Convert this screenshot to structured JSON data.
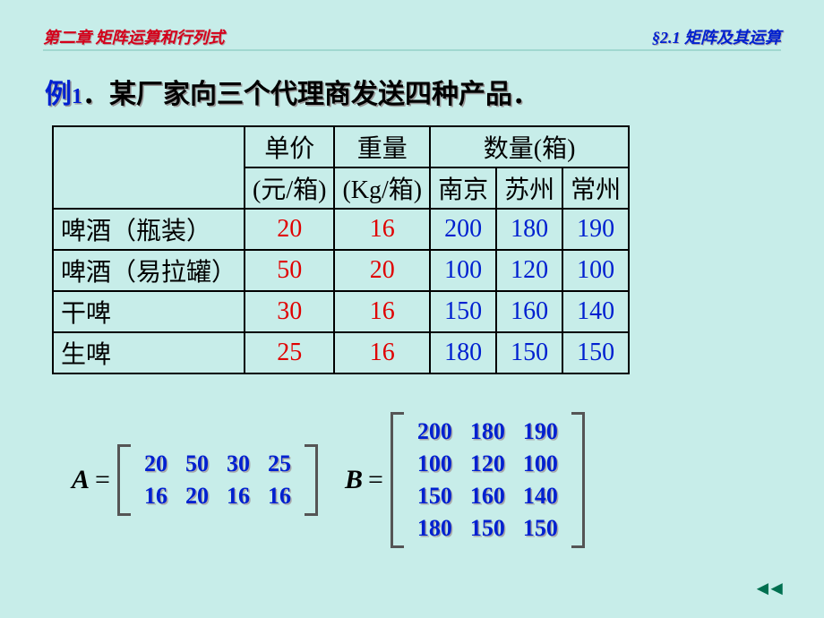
{
  "header": {
    "left": "第二章 矩阵运算和行列式",
    "right": "§2.1 矩阵及其运算"
  },
  "title": {
    "example_label": "例",
    "example_num": "1",
    "text": "．某厂家向三个代理商发送四种产品．"
  },
  "table": {
    "col_headers": {
      "price": "单价",
      "price_unit": "(元/箱)",
      "weight": "重量",
      "weight_unit": "(Kg/箱)",
      "qty": "数量(箱)",
      "city1": "南京",
      "city2": "苏州",
      "city3": "常州"
    },
    "rows": [
      {
        "label": "啤酒（瓶装）",
        "price": "20",
        "weight": "16",
        "q": [
          "200",
          "180",
          "190"
        ]
      },
      {
        "label": "啤酒（易拉罐）",
        "price": "50",
        "weight": "20",
        "q": [
          "100",
          "120",
          "100"
        ]
      },
      {
        "label": "干啤",
        "price": "30",
        "weight": "16",
        "q": [
          "150",
          "160",
          "140"
        ]
      },
      {
        "label": "生啤",
        "price": "25",
        "weight": "16",
        "q": [
          "180",
          "150",
          "150"
        ]
      }
    ],
    "colors": {
      "price_weight": "#e00000",
      "qty": "#0020d0"
    }
  },
  "matrices": {
    "A": {
      "label": "A",
      "rows": 2,
      "cols": 4,
      "values": [
        "20",
        "50",
        "30",
        "25",
        "16",
        "20",
        "16",
        "16"
      ]
    },
    "B": {
      "label": "B",
      "rows": 4,
      "cols": 3,
      "values": [
        "200",
        "180",
        "190",
        "100",
        "120",
        "100",
        "150",
        "160",
        "140",
        "180",
        "150",
        "150"
      ]
    },
    "text_color": "#0020d0"
  },
  "styling": {
    "background_color": "#c7ede9",
    "header_left_color": "#d4001a",
    "header_right_color": "#0020d0",
    "title_fontsize": 30,
    "table_fontsize": 28,
    "matrix_fontsize": 26,
    "border_color": "#000000"
  }
}
